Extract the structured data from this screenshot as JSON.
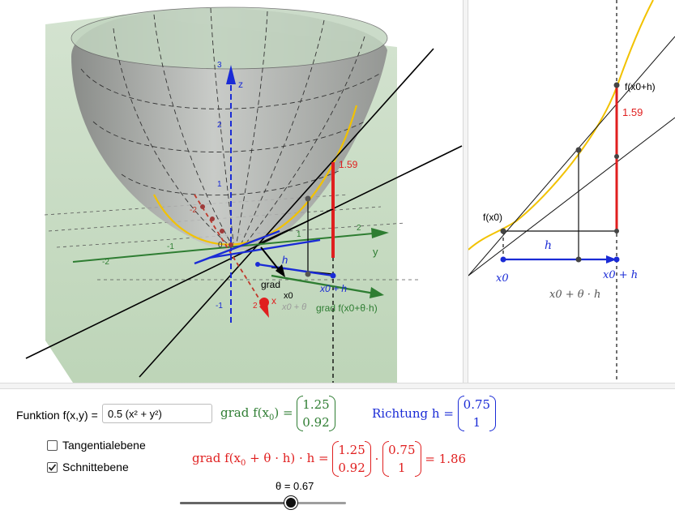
{
  "graphics3d": {
    "axis_z_label": "z",
    "axis_y_label": "y",
    "axis_x_label": "x",
    "z_ticks": [
      "3",
      "2",
      "1",
      "-1"
    ],
    "y_ticks": [
      "-2",
      "-1",
      "1",
      "2"
    ],
    "x_ticks": [
      "-2",
      "2"
    ],
    "origin_label": "0",
    "value_label": "1.59",
    "h_label": "h",
    "x0_label": "x0",
    "grad_label": "grad",
    "x0_plus_h_label": "x0 + h",
    "x0_theta_label": "x0 + θ",
    "grad_theta_label": "grad f(x0+θ·h)"
  },
  "graphics2d": {
    "f_x0_h_label": "f(x0+h)",
    "f_x0_label": "f(x0)",
    "value_label": "1.59",
    "h_label": "h",
    "x0_label": "x0",
    "x0_plus_h_label": "x0 + h",
    "x0_theta_h_label": "x0 + θ · h"
  },
  "panel": {
    "function_label": "Funktion f(x,y) =",
    "function_value": "0.5 (x² + y²)",
    "grad_label": "grad f(x",
    "grad_label_sub": "0",
    "grad_vector": [
      "1.25",
      "0.92"
    ],
    "direction_label": "Richtung",
    "direction_symbol": "h",
    "direction_vector": [
      "0.75",
      "1"
    ],
    "tangent_plane_label": "Tangentialebene",
    "tangent_plane_checked": false,
    "section_plane_label": "Schnittebene",
    "section_plane_checked": true,
    "formula_prefix": "grad f(x",
    "formula_mid": " + θ · h) · ",
    "formula_h": "h",
    "formula_result": "= 1.86",
    "formula_grad_vector": [
      "1.25",
      "0.92"
    ],
    "formula_dir_vector": [
      "0.75",
      "1"
    ],
    "theta_label": "θ = 0.67",
    "theta_value": 0.67
  },
  "colors": {
    "green": "#2e7d32",
    "blue": "#1a2bd6",
    "red": "#e01f1f",
    "parabola": "#f2c200",
    "plane": "#b9d3b4"
  }
}
